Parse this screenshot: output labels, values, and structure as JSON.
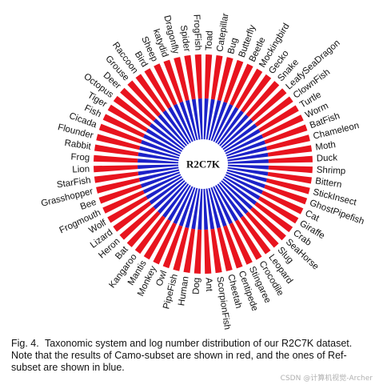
{
  "caption": {
    "fig_label": "Fig. 4.",
    "text": "Taxonomic system and log number distribution of our R2C7K dataset. Note that the results of Camo-subset are shown in red, and the ones of Ref-subset are shown in blue."
  },
  "watermark": "CSDN @计算机视觉-Archer",
  "chart_data": {
    "type": "radial_bar",
    "center_label": "R2C7K",
    "series": [
      {
        "name": "Camo-subset",
        "color": "#e8141e"
      },
      {
        "name": "Ref-subset",
        "color": "#1c22c8"
      }
    ],
    "categories": [
      "Toad",
      "Catepillar",
      "Bug",
      "Butterfly",
      "Beetle",
      "Mockingbird",
      "Gecko",
      "Snake",
      "LeafySeaDragon",
      "ClownFish",
      "Turtle",
      "Worm",
      "BatFish",
      "Chameleon",
      "Moth",
      "Duck",
      "Shrimp",
      "Bittern",
      "StickInsect",
      "GhostPipefish",
      "Cat",
      "Giraffe",
      "Crab",
      "SeaHorse",
      "Slug",
      "Leopard",
      "Crocodile",
      "Stingaree",
      "Centipede",
      "Cheetah",
      "ScorpionFish",
      "Ant",
      "Dog",
      "Human",
      "PipeFish",
      "Owl",
      "Monkey",
      "Mantis",
      "Kangaroo",
      "Bat",
      "Heron",
      "Lizard",
      "Wolf",
      "Frogmouth",
      "Bee",
      "Grasshopper",
      "StarFish",
      "Lion",
      "Frog",
      "Rabbit",
      "Flounder",
      "Cicada",
      "Fish",
      "Tiger",
      "Octopus",
      "Deer",
      "Grouse",
      "Raccoon",
      "Bird",
      "Sheep",
      "katydid",
      "Dragonfly",
      "Spider",
      "FrogFish"
    ],
    "camo_values": [
      1.0,
      1.0,
      1.0,
      1.0,
      1.0,
      1.0,
      1.0,
      1.0,
      1.0,
      1.0,
      1.0,
      1.0,
      1.0,
      1.0,
      1.0,
      1.0,
      1.0,
      1.0,
      1.0,
      1.0,
      1.0,
      1.0,
      1.0,
      1.0,
      1.0,
      1.0,
      1.0,
      1.0,
      1.0,
      1.0,
      1.0,
      1.0,
      1.0,
      1.0,
      1.0,
      1.0,
      1.0,
      1.0,
      1.0,
      1.0,
      1.0,
      1.0,
      1.0,
      1.0,
      1.0,
      1.0,
      1.0,
      1.0,
      1.0,
      1.0,
      1.0,
      1.0,
      1.0,
      1.0,
      1.0,
      1.0,
      1.0,
      1.0,
      1.0,
      1.0,
      1.0,
      1.0,
      1.0,
      1.0
    ],
    "ref_values": [
      1.0,
      1.0,
      1.0,
      1.0,
      1.0,
      1.0,
      1.0,
      1.0,
      1.0,
      1.0,
      1.0,
      1.0,
      1.0,
      1.0,
      1.0,
      1.0,
      1.0,
      1.0,
      1.0,
      1.0,
      1.0,
      1.0,
      1.0,
      1.0,
      1.0,
      1.0,
      1.0,
      1.0,
      1.0,
      1.0,
      1.0,
      1.0,
      1.0,
      1.0,
      1.0,
      1.0,
      1.0,
      1.0,
      1.0,
      1.0,
      1.0,
      1.0,
      1.0,
      1.0,
      1.0,
      1.0,
      1.0,
      1.0,
      1.0,
      1.0,
      1.0,
      1.0,
      1.0,
      1.0,
      1.0,
      1.0,
      1.0,
      1.0,
      1.0,
      1.0,
      1.0,
      1.0,
      1.0,
      1.0
    ],
    "grid": false,
    "legend": "none"
  }
}
